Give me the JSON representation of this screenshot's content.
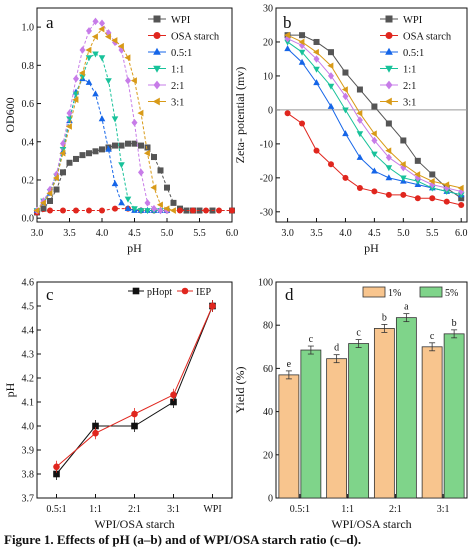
{
  "caption": "Figure 1. Effects of pH (a–b) and of WPI/OSA starch ratio (c–d).",
  "colors": {
    "WPI": "#555555",
    "OSA starch": "#e0261e",
    "0.5:1": "#1565e8",
    "1:1": "#18c29a",
    "2:1": "#c77ce8",
    "3:1": "#d89a18",
    "pHopt": "#111111",
    "IEP": "#e0261e",
    "1%": "#f8c58e",
    "5%": "#7fd48a"
  },
  "chart_data": [
    {
      "panel": "a",
      "type": "line",
      "xlabel": "pH",
      "ylabel": "OD600",
      "xlim": [
        3.0,
        6.0
      ],
      "ylim": [
        -0.02,
        1.1
      ],
      "xticks": [
        "3.0",
        "3.5",
        "4.0",
        "4.5",
        "5.0",
        "5.5",
        "6.0"
      ],
      "yticks": [
        "0.0",
        "0.2",
        "0.4",
        "0.6",
        "0.8",
        "1.0"
      ],
      "legend_position": "top-right",
      "series": [
        {
          "name": "WPI",
          "marker": "square",
          "x": [
            3.0,
            3.1,
            3.2,
            3.3,
            3.4,
            3.5,
            3.6,
            3.7,
            3.8,
            3.9,
            4.0,
            4.1,
            4.2,
            4.3,
            4.4,
            4.5,
            4.6,
            4.7,
            4.8,
            4.9,
            5.0,
            5.1,
            5.2,
            5.3,
            5.4,
            5.5,
            5.7,
            6.0
          ],
          "y": [
            0.03,
            0.05,
            0.09,
            0.15,
            0.24,
            0.29,
            0.31,
            0.33,
            0.34,
            0.35,
            0.36,
            0.37,
            0.38,
            0.38,
            0.39,
            0.39,
            0.38,
            0.37,
            0.32,
            0.25,
            0.16,
            0.08,
            0.05,
            0.04,
            0.04,
            0.04,
            0.04,
            0.04
          ]
        },
        {
          "name": "OSA starch",
          "marker": "circle",
          "x": [
            3.0,
            3.2,
            3.4,
            3.6,
            3.8,
            4.0,
            4.2,
            4.4,
            4.6,
            4.8,
            5.0,
            5.2,
            5.4,
            5.6,
            5.8,
            6.0
          ],
          "y": [
            0.03,
            0.04,
            0.04,
            0.04,
            0.04,
            0.04,
            0.05,
            0.05,
            0.04,
            0.04,
            0.04,
            0.04,
            0.04,
            0.04,
            0.04,
            0.04
          ]
        },
        {
          "name": "0.5:1",
          "marker": "triangle-up",
          "x": [
            3.0,
            3.1,
            3.2,
            3.3,
            3.4,
            3.5,
            3.6,
            3.7,
            3.8,
            3.9,
            4.0,
            4.1,
            4.2,
            4.3,
            4.4,
            4.5,
            4.6,
            4.7,
            4.8,
            4.9,
            5.0
          ],
          "y": [
            0.04,
            0.08,
            0.13,
            0.21,
            0.35,
            0.51,
            0.66,
            0.73,
            0.71,
            0.65,
            0.52,
            0.36,
            0.18,
            0.08,
            0.05,
            0.04,
            0.04,
            0.04,
            0.04,
            0.04,
            0.04
          ]
        },
        {
          "name": "1:1",
          "marker": "triangle-down",
          "x": [
            3.0,
            3.1,
            3.2,
            3.3,
            3.4,
            3.5,
            3.6,
            3.7,
            3.8,
            3.9,
            4.0,
            4.1,
            4.2,
            4.3,
            4.4,
            4.5,
            4.6,
            4.7,
            4.8,
            4.9,
            5.0
          ],
          "y": [
            0.04,
            0.09,
            0.14,
            0.22,
            0.36,
            0.52,
            0.65,
            0.74,
            0.84,
            0.86,
            0.84,
            0.72,
            0.52,
            0.28,
            0.1,
            0.05,
            0.04,
            0.04,
            0.04,
            0.04,
            0.04
          ]
        },
        {
          "name": "2:1",
          "marker": "diamond",
          "x": [
            3.0,
            3.1,
            3.2,
            3.3,
            3.4,
            3.5,
            3.6,
            3.7,
            3.8,
            3.9,
            4.0,
            4.1,
            4.2,
            4.3,
            4.4,
            4.5,
            4.6,
            4.7,
            4.8,
            4.9,
            5.0
          ],
          "y": [
            0.04,
            0.09,
            0.15,
            0.23,
            0.39,
            0.55,
            0.73,
            0.88,
            0.98,
            1.03,
            1.02,
            0.97,
            0.92,
            0.88,
            0.72,
            0.5,
            0.24,
            0.08,
            0.05,
            0.04,
            0.04
          ]
        },
        {
          "name": "3:1",
          "marker": "triangle-left",
          "x": [
            3.0,
            3.1,
            3.2,
            3.3,
            3.4,
            3.5,
            3.6,
            3.7,
            3.8,
            3.9,
            4.0,
            4.1,
            4.2,
            4.3,
            4.4,
            4.5,
            4.6,
            4.7,
            4.8,
            4.9,
            5.0,
            5.1
          ],
          "y": [
            0.04,
            0.08,
            0.13,
            0.21,
            0.34,
            0.48,
            0.62,
            0.76,
            0.88,
            0.95,
            0.99,
            0.95,
            0.93,
            0.9,
            0.84,
            0.72,
            0.55,
            0.34,
            0.16,
            0.07,
            0.05,
            0.04
          ]
        }
      ]
    },
    {
      "panel": "b",
      "type": "line",
      "xlabel": "pH",
      "ylabel": "Zeta- potential (mv)",
      "xlim": [
        2.8,
        6.1
      ],
      "ylim": [
        -33,
        30
      ],
      "xticks": [
        "3.0",
        "3.5",
        "4.0",
        "4.5",
        "5.0",
        "5.5",
        "6.0"
      ],
      "yticks": [
        "-30",
        "-20",
        "-10",
        "0",
        "10",
        "20",
        "30"
      ],
      "zero_line": true,
      "legend_position": "top-right",
      "series": [
        {
          "name": "WPI",
          "marker": "square",
          "x": [
            3.0,
            3.25,
            3.5,
            3.75,
            4.0,
            4.25,
            4.5,
            4.75,
            5.0,
            5.25,
            5.5,
            5.75,
            6.0
          ],
          "y": [
            22,
            22,
            20,
            17,
            11,
            6,
            1,
            -4,
            -9,
            -15,
            -19,
            -23,
            -26
          ]
        },
        {
          "name": "OSA starch",
          "marker": "circle",
          "x": [
            3.0,
            3.25,
            3.5,
            3.75,
            4.0,
            4.25,
            4.5,
            4.75,
            5.0,
            5.25,
            5.5,
            5.75,
            6.0
          ],
          "y": [
            -1,
            -4,
            -12,
            -16,
            -20,
            -23,
            -24,
            -25,
            -25,
            -26,
            -26,
            -27,
            -28
          ]
        },
        {
          "name": "0.5:1",
          "marker": "triangle-up",
          "x": [
            3.0,
            3.25,
            3.5,
            3.75,
            4.0,
            4.25,
            4.5,
            4.75,
            5.0,
            5.25,
            5.5,
            5.75,
            6.0
          ],
          "y": [
            18,
            14,
            8,
            1,
            -7,
            -14,
            -18,
            -20,
            -21,
            -22,
            -23,
            -24,
            -25
          ]
        },
        {
          "name": "1:1",
          "marker": "triangle-down",
          "x": [
            3.0,
            3.25,
            3.5,
            3.75,
            4.0,
            4.25,
            4.5,
            4.75,
            5.0,
            5.25,
            5.5,
            5.75,
            6.0
          ],
          "y": [
            20,
            17,
            12,
            7,
            0,
            -7,
            -13,
            -17,
            -20,
            -21,
            -23,
            -24,
            -25
          ]
        },
        {
          "name": "2:1",
          "marker": "diamond",
          "x": [
            3.0,
            3.25,
            3.5,
            3.75,
            4.0,
            4.25,
            4.5,
            4.75,
            5.0,
            5.25,
            5.5,
            5.75,
            6.0
          ],
          "y": [
            21,
            19,
            15,
            10,
            4,
            -3,
            -9,
            -14,
            -17,
            -20,
            -22,
            -23,
            -24
          ]
        },
        {
          "name": "3:1",
          "marker": "triangle-left",
          "x": [
            3.0,
            3.25,
            3.5,
            3.75,
            4.0,
            4.25,
            4.5,
            4.75,
            5.0,
            5.25,
            5.5,
            5.75,
            6.0
          ],
          "y": [
            22,
            20,
            17,
            13,
            6,
            -1,
            -7,
            -12,
            -16,
            -19,
            -21,
            -22,
            -23
          ]
        }
      ]
    },
    {
      "panel": "c",
      "type": "line",
      "xlabel": "WPI/OSA starch",
      "ylabel": "pH",
      "ylim": [
        3.7,
        4.6
      ],
      "categories": [
        "0.5:1",
        "1:1",
        "2:1",
        "3:1",
        "WPI"
      ],
      "yticks": [
        "3.7",
        "3.8",
        "3.9",
        "4.0",
        "4.1",
        "4.2",
        "4.3",
        "4.4",
        "4.5",
        "4.6"
      ],
      "legend_position": "top",
      "series": [
        {
          "name": "pHopt",
          "marker": "square",
          "values": [
            3.8,
            4.0,
            4.0,
            4.1,
            4.5
          ]
        },
        {
          "name": "IEP",
          "marker": "circle",
          "values": [
            3.83,
            3.97,
            4.05,
            4.13,
            4.5
          ]
        }
      ]
    },
    {
      "panel": "d",
      "type": "bar",
      "xlabel": "WPI/OSA starch",
      "ylabel": "Yield (%)",
      "ylim": [
        0,
        100
      ],
      "categories": [
        "0.5:1",
        "1:1",
        "2:1",
        "3:1"
      ],
      "yticks": [
        "0",
        "20",
        "40",
        "60",
        "80",
        "100"
      ],
      "legend_position": "top-right",
      "series": [
        {
          "name": "1%",
          "values": [
            57,
            64.5,
            78.5,
            70
          ],
          "letters": [
            "e",
            "d",
            "b",
            "c"
          ]
        },
        {
          "name": "5%",
          "values": [
            68.5,
            71.5,
            83.5,
            76
          ],
          "letters": [
            "c",
            "c",
            "a",
            "b"
          ]
        }
      ]
    }
  ]
}
